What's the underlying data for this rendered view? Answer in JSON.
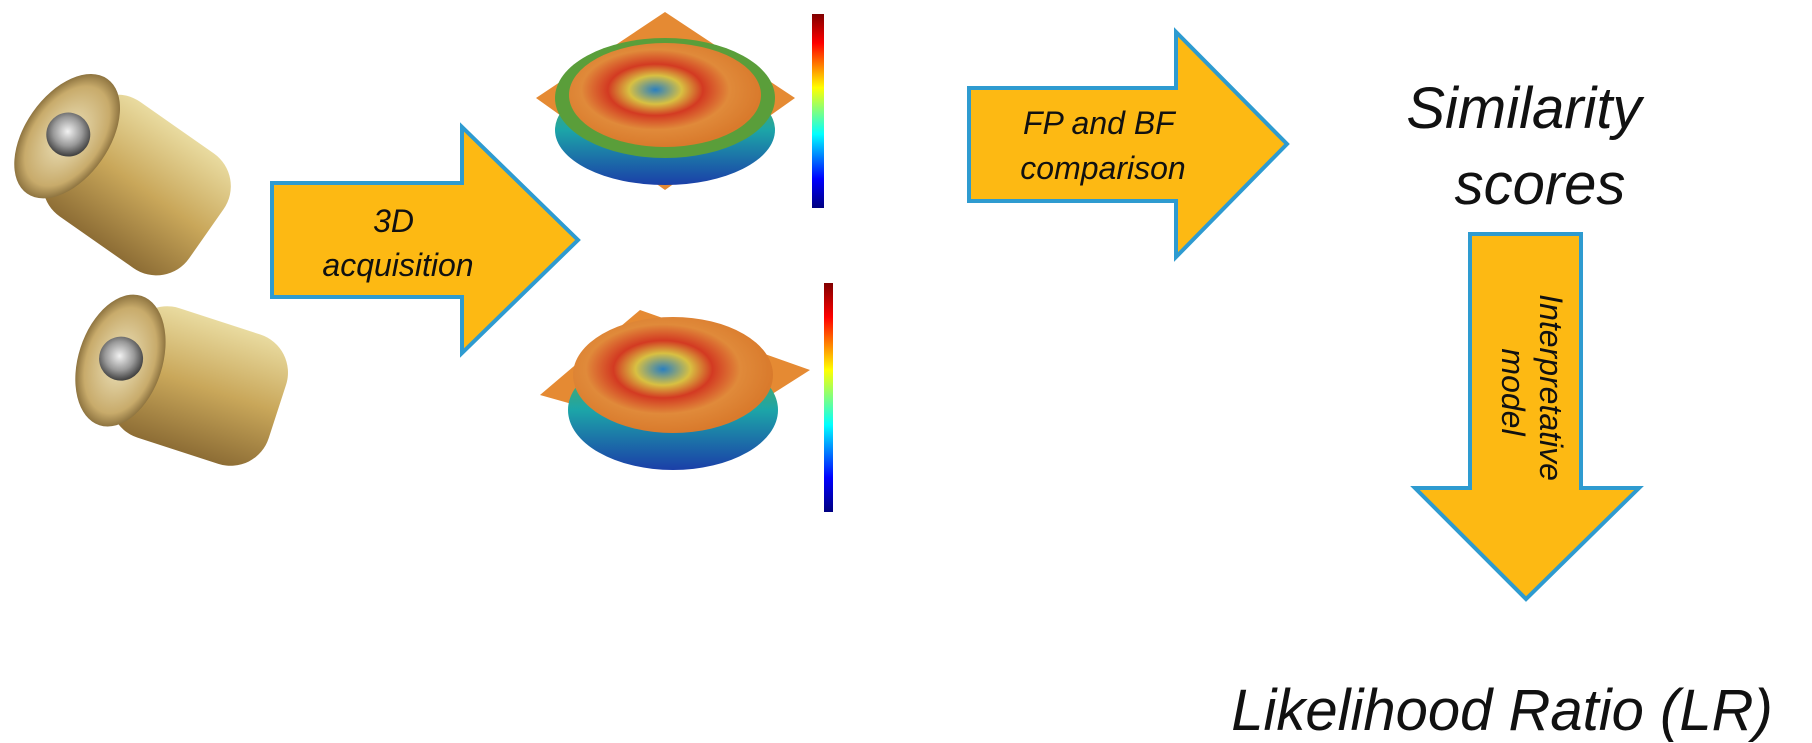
{
  "acquisition_arrow": {
    "lines": [
      "3D",
      "acquisition"
    ]
  },
  "comparison_arrow": {
    "lines": [
      "FP and BF",
      "comparison"
    ]
  },
  "result": {
    "lines": [
      "Similarity",
      "scores"
    ]
  },
  "model_arrow": {
    "lines": [
      "Interpretative",
      "model"
    ]
  },
  "output": {
    "label": "Likelihood Ratio (LR)"
  }
}
